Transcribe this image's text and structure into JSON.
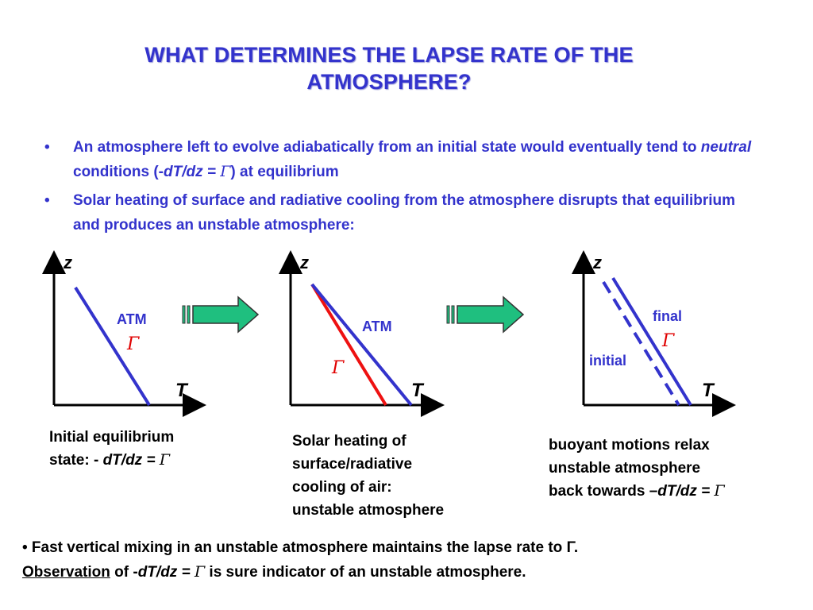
{
  "title": {
    "line1": "WHAT DETERMINES THE LAPSE RATE OF THE",
    "line2": "ATMOSPHERE?"
  },
  "bullets": [
    {
      "symbol": "•",
      "text_a": "An atmosphere left to evolve adiabatically from an initial state would eventually tend to ",
      "emph": "neutral",
      "text_b": " conditions (-",
      "expr": "dT/dz = ",
      "gamma": "Γ",
      "text_c": ") at equilibrium"
    },
    {
      "symbol": "•",
      "text": "Solar heating of surface and radiative cooling from the atmosphere disrupts that equilibrium and produces an unstable atmosphere:"
    }
  ],
  "diagrams": {
    "z_label": "z",
    "t_label": "T",
    "panel1": {
      "atm": "ATM",
      "gamma": "Γ"
    },
    "panel2": {
      "atm": "ATM",
      "gamma": "Γ"
    },
    "panel3": {
      "final": "final",
      "gamma": "Γ",
      "initial": "initial"
    },
    "colors": {
      "blue_line": "#3333cc",
      "red_line": "#ee1111",
      "arrow_fill": "#1fbf7f",
      "label_blue": "#3333cc",
      "gamma_red": "#e00000"
    }
  },
  "captions": {
    "c1": {
      "line1": "Initial equilibrium",
      "line2_a": "state: - ",
      "line2_b": "dT/dz = ",
      "gamma": "Γ"
    },
    "c2": {
      "line1": "Solar heating of",
      "line2": "surface/radiative",
      "line3": "cooling of air:",
      "line4": "unstable atmosphere"
    },
    "c3": {
      "line1": "buoyant motions relax",
      "line2": "unstable atmosphere",
      "line3_a": "back towards –",
      "line3_b": "dT/dz = ",
      "gamma": "Γ"
    }
  },
  "footer": {
    "line1": "• Fast vertical mixing in an unstable atmosphere maintains the lapse rate to Γ.",
    "obs": "Observation",
    "of_text": " of -",
    "expr": "dT/dz = ",
    "gamma": "Γ",
    "rest": "  is sure indicator of an unstable atmosphere."
  }
}
